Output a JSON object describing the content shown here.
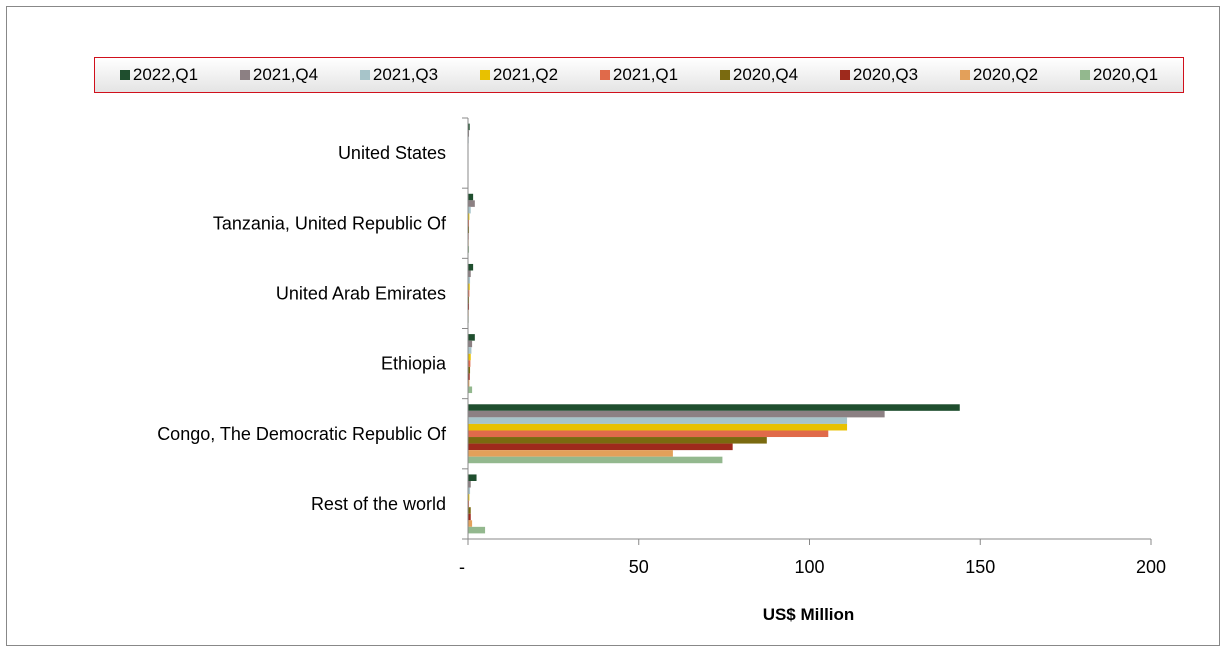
{
  "chart_data": {
    "type": "bar",
    "orientation": "horizontal",
    "categories": [
      "United States",
      "Tanzania, United Republic Of",
      "United Arab Emirates",
      "Ethiopia",
      "Congo, The Democratic Republic Of",
      "Rest of the world"
    ],
    "series": [
      {
        "name": "2022,Q1",
        "color": "#1f4e2e",
        "values": [
          0.5,
          1.5,
          1.5,
          2.0,
          144,
          2.5
        ]
      },
      {
        "name": "2021,Q4",
        "color": "#8c8083",
        "values": [
          0.3,
          2.0,
          0.8,
          1.2,
          122,
          0.8
        ]
      },
      {
        "name": "2021,Q3",
        "color": "#a7c4c9",
        "values": [
          0.2,
          0.8,
          0.6,
          1.0,
          111,
          0.6
        ]
      },
      {
        "name": "2021,Q2",
        "color": "#e8c100",
        "values": [
          0.1,
          0.4,
          0.5,
          0.8,
          111,
          0.4
        ]
      },
      {
        "name": "2021,Q1",
        "color": "#e06a4a",
        "values": [
          0.1,
          0.3,
          0.4,
          0.7,
          105.5,
          0.3
        ]
      },
      {
        "name": "2020,Q4",
        "color": "#7a6a10",
        "values": [
          0.1,
          0.3,
          0.3,
          0.6,
          87.5,
          0.8
        ]
      },
      {
        "name": "2020,Q3",
        "color": "#9e2a1c",
        "values": [
          0.1,
          0.2,
          0.3,
          0.5,
          77.5,
          0.8
        ]
      },
      {
        "name": "2020,Q2",
        "color": "#e3a05a",
        "values": [
          0.1,
          0.2,
          0.2,
          0.4,
          60,
          1.2
        ]
      },
      {
        "name": "2020,Q1",
        "color": "#93b88e",
        "values": [
          0.1,
          0.3,
          0.2,
          1.2,
          74.5,
          5.0
        ]
      }
    ],
    "x_ticks": [
      "-",
      "50",
      "100",
      "150",
      "200"
    ],
    "xlim": [
      0,
      200
    ],
    "xlabel": "US$ Million",
    "legend_position": "top",
    "grid": false
  }
}
